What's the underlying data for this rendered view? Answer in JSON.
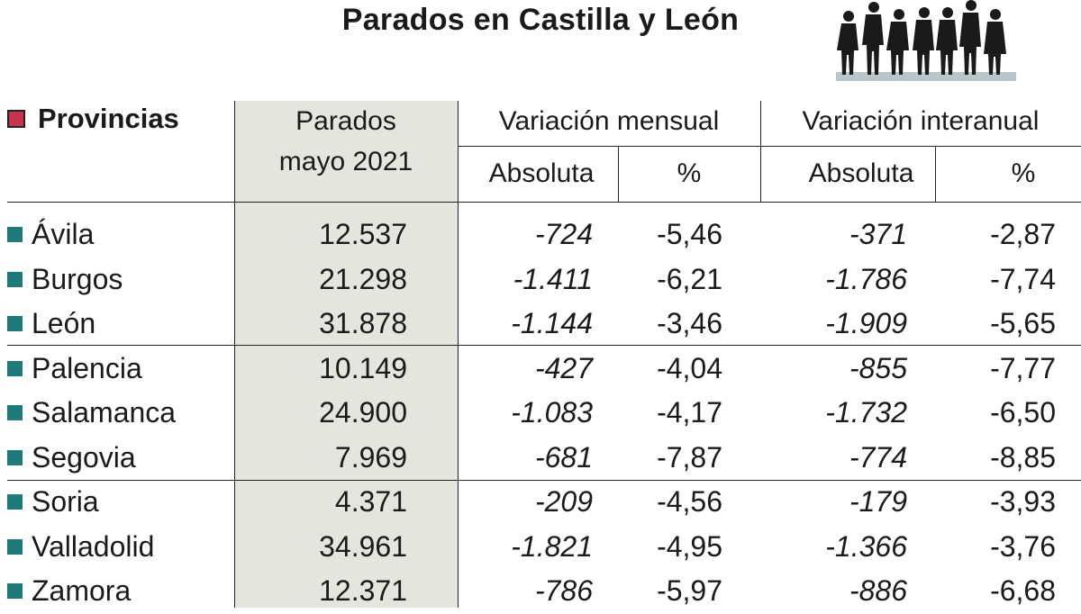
{
  "title": "Parados en Castilla y León",
  "colors": {
    "shade": "#e6e5dd",
    "bullet": "#1f7a7a",
    "header_square": "#c8324d"
  },
  "icons": {
    "people": "people-silhouette-icon",
    "bullet": "square-bullet-icon"
  },
  "headers": {
    "provincias": "Provincias",
    "parados_line1": "Parados",
    "parados_line2": "mayo 2021",
    "var_mensual": "Variación mensual",
    "var_interanual": "Variación interanual",
    "absoluta": "Absoluta",
    "pct": "%"
  },
  "chart_data": {
    "type": "table",
    "title": "Parados en Castilla y León",
    "columns": [
      "Provincias",
      "Parados mayo 2021",
      "Variación mensual Absoluta",
      "Variación mensual %",
      "Variación interanual Absoluta",
      "Variación interanual %"
    ],
    "rows": [
      {
        "provincia": "Ávila",
        "parados": "12.537",
        "mensual_abs": "-724",
        "mensual_pct": "-5,46",
        "interanual_abs": "-371",
        "interanual_pct": "-2,87"
      },
      {
        "provincia": "Burgos",
        "parados": "21.298",
        "mensual_abs": "-1.411",
        "mensual_pct": "-6,21",
        "interanual_abs": "-1.786",
        "interanual_pct": "-7,74"
      },
      {
        "provincia": "León",
        "parados": "31.878",
        "mensual_abs": "-1.144",
        "mensual_pct": "-3,46",
        "interanual_abs": "-1.909",
        "interanual_pct": "-5,65"
      },
      {
        "provincia": "Palencia",
        "parados": "10.149",
        "mensual_abs": "-427",
        "mensual_pct": "-4,04",
        "interanual_abs": "-855",
        "interanual_pct": "-7,77"
      },
      {
        "provincia": "Salamanca",
        "parados": "24.900",
        "mensual_abs": "-1.083",
        "mensual_pct": "-4,17",
        "interanual_abs": "-1.732",
        "interanual_pct": "-6,50"
      },
      {
        "provincia": "Segovia",
        "parados": "7.969",
        "mensual_abs": "-681",
        "mensual_pct": "-7,87",
        "interanual_abs": "-774",
        "interanual_pct": "-8,85"
      },
      {
        "provincia": "Soria",
        "parados": "4.371",
        "mensual_abs": "-209",
        "mensual_pct": "-4,56",
        "interanual_abs": "-179",
        "interanual_pct": "-3,93"
      },
      {
        "provincia": "Valladolid",
        "parados": "34.961",
        "mensual_abs": "-1.821",
        "mensual_pct": "-4,95",
        "interanual_abs": "-1.366",
        "interanual_pct": "-3,76"
      },
      {
        "provincia": "Zamora",
        "parados": "12.371",
        "mensual_abs": "-786",
        "mensual_pct": "-5,97",
        "interanual_abs": "-886",
        "interanual_pct": "-6,68"
      }
    ]
  }
}
